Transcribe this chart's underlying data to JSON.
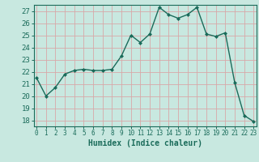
{
  "x": [
    0,
    1,
    2,
    3,
    4,
    5,
    6,
    7,
    8,
    9,
    10,
    11,
    12,
    13,
    14,
    15,
    16,
    17,
    18,
    19,
    20,
    21,
    22,
    23
  ],
  "y": [
    21.5,
    20.0,
    20.7,
    21.8,
    22.1,
    22.2,
    22.1,
    22.1,
    22.2,
    23.3,
    25.0,
    24.4,
    25.1,
    27.3,
    26.7,
    26.4,
    26.7,
    27.3,
    25.1,
    24.9,
    25.2,
    21.1,
    18.4,
    17.9
  ],
  "line_color": "#1a6b5a",
  "marker": "D",
  "markersize": 2.0,
  "linewidth": 1.0,
  "bg_color": "#c8e8e0",
  "grid_color": "#d8a8a8",
  "xlabel": "Humidex (Indice chaleur)",
  "xlabel_fontsize": 7,
  "tick_fontsize": 7,
  "ylim": [
    17.5,
    27.5
  ],
  "yticks": [
    18,
    19,
    20,
    21,
    22,
    23,
    24,
    25,
    26,
    27
  ],
  "xticks": [
    0,
    1,
    2,
    3,
    4,
    5,
    6,
    7,
    8,
    9,
    10,
    11,
    12,
    13,
    14,
    15,
    16,
    17,
    18,
    19,
    20,
    21,
    22,
    23
  ],
  "axes_color": "#1a6b5a"
}
